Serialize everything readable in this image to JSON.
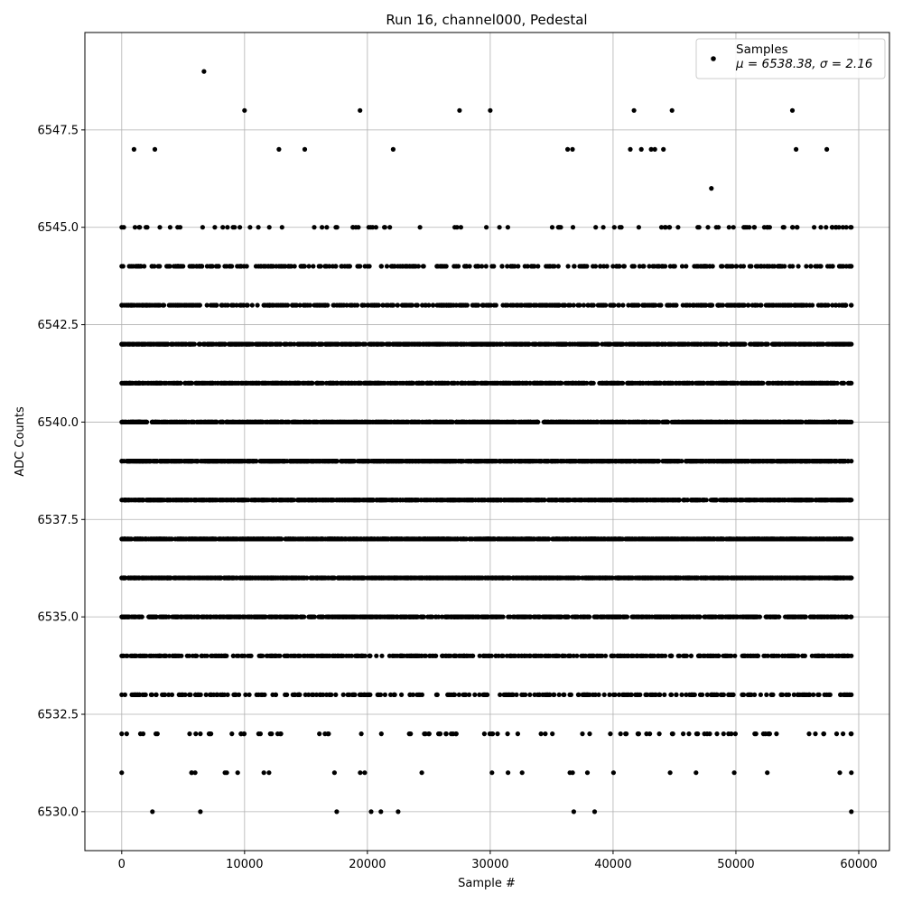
{
  "chart_data": {
    "type": "scatter",
    "title": "Run 16, channel000, Pedestal",
    "xlabel": "Sample #",
    "ylabel": "ADC Counts",
    "xlim": [
      -3000,
      62500
    ],
    "ylim": [
      6529.0,
      6550.0
    ],
    "x_ticks": [
      0,
      10000,
      20000,
      30000,
      40000,
      50000,
      60000
    ],
    "x_tick_labels": [
      "0",
      "10000",
      "20000",
      "30000",
      "40000",
      "50000",
      "60000"
    ],
    "y_ticks": [
      6530.0,
      6532.5,
      6535.0,
      6537.5,
      6540.0,
      6542.5,
      6545.0,
      6547.5
    ],
    "y_tick_labels": [
      "6530.0",
      "6532.5",
      "6535.0",
      "6537.5",
      "6540.0",
      "6542.5",
      "6545.0",
      "6547.5"
    ],
    "grid": true,
    "legend_position": "top-right",
    "marker_color": "#000000",
    "series": [
      {
        "name": "Samples",
        "x_range": [
          0,
          59400
        ],
        "levels": [
          {
            "y": 6537,
            "density": "continuous"
          },
          {
            "y": 6538,
            "density": "continuous"
          },
          {
            "y": 6539,
            "density": "continuous"
          },
          {
            "y": 6536,
            "density": "continuous"
          },
          {
            "y": 6540,
            "density": "continuous"
          },
          {
            "y": 6535,
            "density": "dense"
          },
          {
            "y": 6541,
            "density": "dense"
          },
          {
            "y": 6542,
            "density": "dense"
          },
          {
            "y": 6534,
            "density": "frequent"
          },
          {
            "y": 6543,
            "density": "frequent"
          },
          {
            "y": 6533,
            "density": "moderate"
          },
          {
            "y": 6544,
            "density": "moderate"
          },
          {
            "y": 6545,
            "density": "sparse"
          },
          {
            "y": 6532,
            "density": "sparse"
          },
          {
            "y": 6531,
            "density": "rare"
          }
        ],
        "points": [
          {
            "x": 6700,
            "y": 6549
          },
          {
            "x": 10000,
            "y": 6548
          },
          {
            "x": 19400,
            "y": 6548
          },
          {
            "x": 27500,
            "y": 6548
          },
          {
            "x": 30000,
            "y": 6548
          },
          {
            "x": 41700,
            "y": 6548
          },
          {
            "x": 44800,
            "y": 6548
          },
          {
            "x": 54600,
            "y": 6548
          },
          {
            "x": 1000,
            "y": 6547
          },
          {
            "x": 2700,
            "y": 6547
          },
          {
            "x": 12800,
            "y": 6547
          },
          {
            "x": 14900,
            "y": 6547
          },
          {
            "x": 22100,
            "y": 6547
          },
          {
            "x": 36300,
            "y": 6547
          },
          {
            "x": 36700,
            "y": 6547
          },
          {
            "x": 41400,
            "y": 6547
          },
          {
            "x": 42300,
            "y": 6547
          },
          {
            "x": 43100,
            "y": 6547
          },
          {
            "x": 43400,
            "y": 6547
          },
          {
            "x": 44100,
            "y": 6547
          },
          {
            "x": 54900,
            "y": 6547
          },
          {
            "x": 57400,
            "y": 6547
          },
          {
            "x": 48000,
            "y": 6546
          },
          {
            "x": 2500,
            "y": 6530
          },
          {
            "x": 6400,
            "y": 6530
          },
          {
            "x": 17500,
            "y": 6530
          },
          {
            "x": 20300,
            "y": 6530
          },
          {
            "x": 21100,
            "y": 6530
          },
          {
            "x": 22500,
            "y": 6530
          },
          {
            "x": 36800,
            "y": 6530
          },
          {
            "x": 38500,
            "y": 6530
          },
          {
            "x": 59400,
            "y": 6530
          }
        ]
      }
    ],
    "legend": {
      "label": "Samples",
      "stats": "μ = 6538.38, σ = 2.16"
    }
  }
}
